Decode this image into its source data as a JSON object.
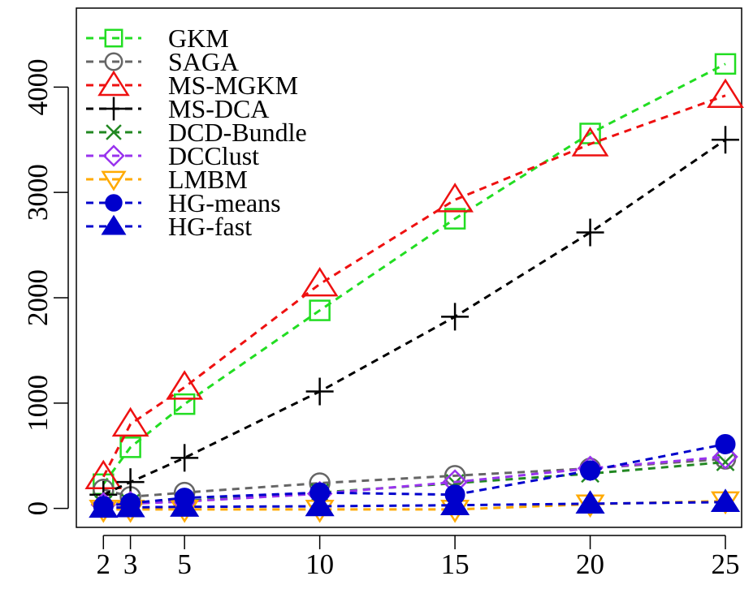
{
  "chart_data": {
    "type": "line",
    "title": "",
    "xlabel": "",
    "ylabel": "",
    "x": [
      2,
      3,
      5,
      10,
      15,
      20,
      25
    ],
    "x_ticks": [
      2,
      3,
      5,
      10,
      15,
      20,
      25
    ],
    "y_ticks": [
      0,
      1000,
      2000,
      3000,
      4000
    ],
    "xlim": [
      1.0,
      25.6
    ],
    "ylim": [
      -180,
      4750
    ],
    "grid": false,
    "legend_position": "top-left",
    "series": [
      {
        "name": "GKM",
        "color": "#22dd22",
        "marker": "square-open",
        "values": [
          230,
          580,
          990,
          1880,
          2750,
          3560,
          4220
        ]
      },
      {
        "name": "SAGA",
        "color": "#666666",
        "marker": "circle-open",
        "values": [
          180,
          110,
          150,
          240,
          310,
          380,
          470
        ]
      },
      {
        "name": "MS-MGKM",
        "color": "#ee1111",
        "marker": "triangle-open",
        "values": [
          300,
          800,
          1150,
          2130,
          2930,
          3460,
          3920
        ]
      },
      {
        "name": "MS-DCA",
        "color": "#000000",
        "marker": "plus",
        "values": [
          130,
          250,
          480,
          1110,
          1820,
          2620,
          3500
        ]
      },
      {
        "name": "DCD-Bundle",
        "color": "#228822",
        "marker": "x",
        "values": [
          40,
          50,
          70,
          150,
          240,
          330,
          440
        ]
      },
      {
        "name": "DCClust",
        "color": "#9933ee",
        "marker": "diamond-open",
        "values": [
          35,
          45,
          65,
          140,
          250,
          380,
          490
        ]
      },
      {
        "name": "LMBM",
        "color": "#ffaa00",
        "marker": "triangle-down-open",
        "values": [
          -10,
          -10,
          -10,
          -10,
          -10,
          40,
          70
        ]
      },
      {
        "name": "HG-means",
        "color": "#0000cc",
        "marker": "circle-filled",
        "values": [
          20,
          50,
          100,
          150,
          130,
          360,
          610
        ]
      },
      {
        "name": "HG-fast",
        "color": "#0000cc",
        "marker": "triangle-filled",
        "values": [
          5,
          10,
          15,
          20,
          30,
          45,
          60
        ]
      }
    ]
  }
}
